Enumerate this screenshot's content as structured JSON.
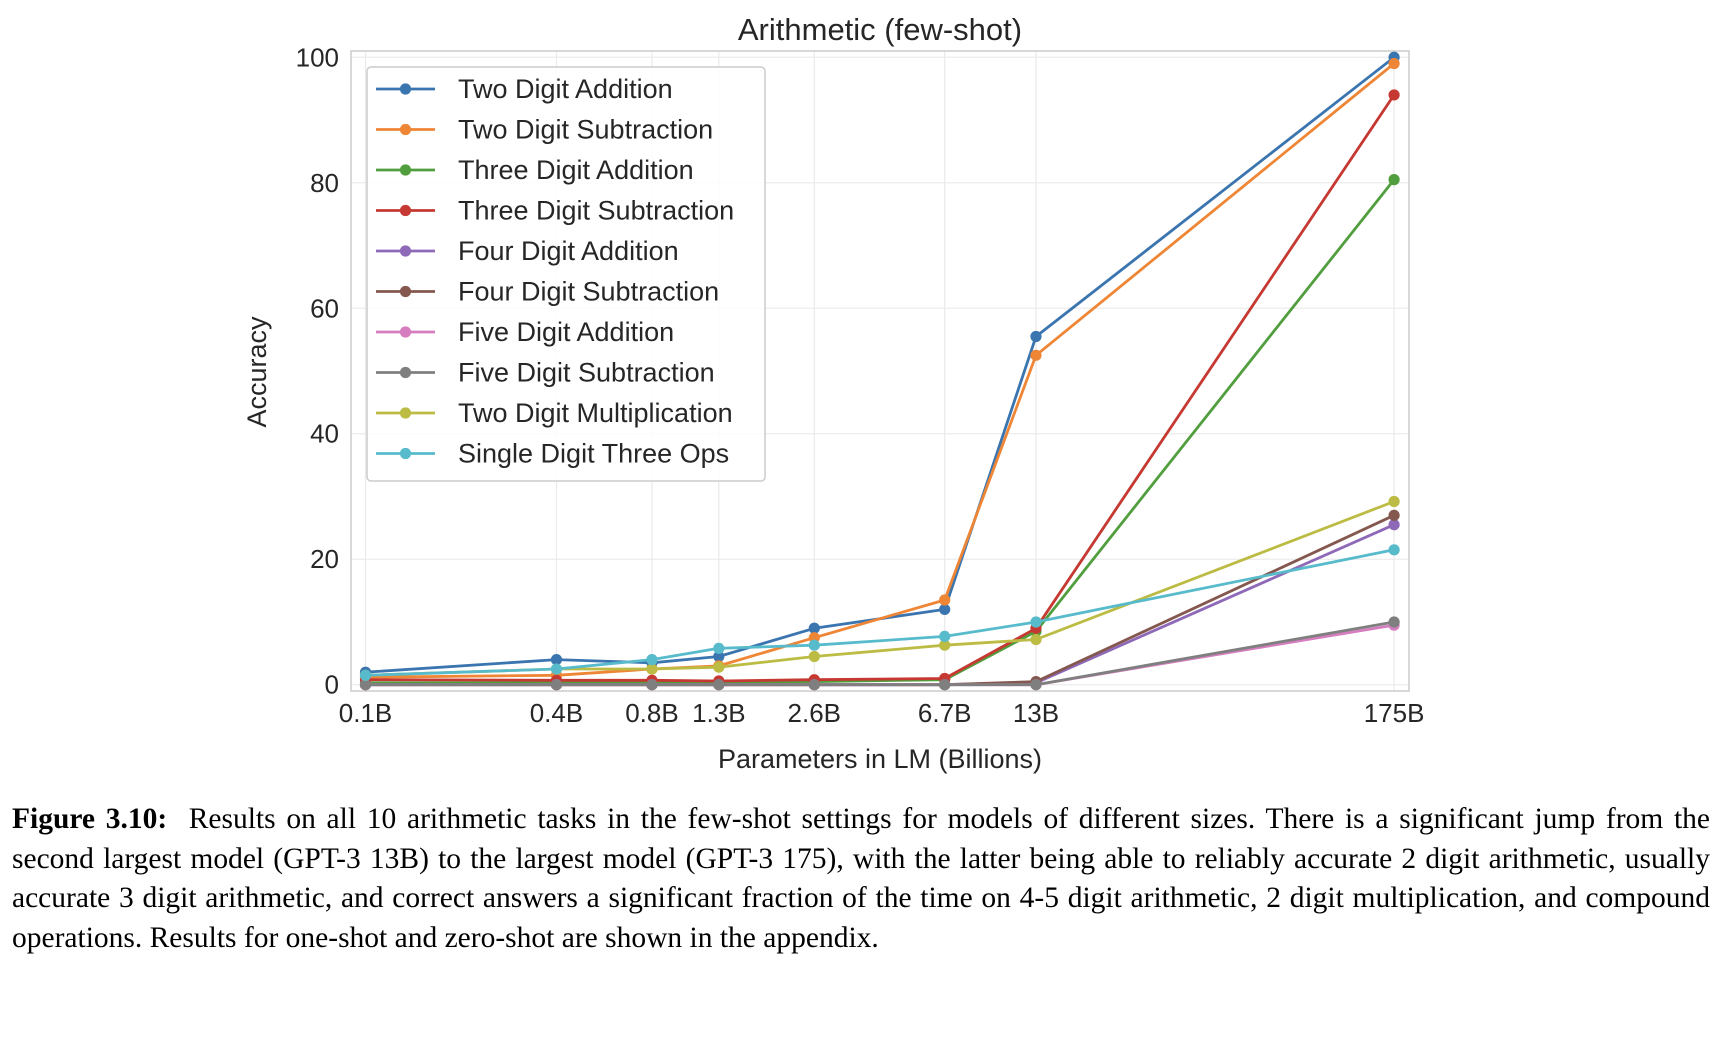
{
  "chart_data": {
    "type": "line",
    "title": "Arithmetic (few-shot)",
    "xlabel": "Parameters in LM (Billions)",
    "ylabel": "Accuracy",
    "x_scale": "log",
    "x": [
      0.1,
      0.4,
      0.8,
      1.3,
      2.6,
      6.7,
      13,
      175
    ],
    "x_tick_labels": [
      "0.1B",
      "0.4B",
      "0.8B",
      "1.3B",
      "2.6B",
      "6.7B",
      "13B",
      "175B"
    ],
    "ylim": [
      -1,
      101
    ],
    "y_ticks": [
      0,
      20,
      40,
      60,
      80,
      100
    ],
    "grid": true,
    "legend_position": "upper-left",
    "series": [
      {
        "name": "Two Digit Addition",
        "color": "#3b75af",
        "values": [
          2.0,
          4.0,
          3.5,
          4.5,
          9.0,
          12.0,
          55.5,
          100.0
        ]
      },
      {
        "name": "Two Digit Subtraction",
        "color": "#ef8636",
        "values": [
          1.2,
          1.5,
          2.5,
          3.0,
          7.5,
          13.5,
          52.5,
          99.0
        ]
      },
      {
        "name": "Three Digit Addition",
        "color": "#519e3e",
        "values": [
          0.3,
          0.3,
          0.3,
          0.3,
          0.5,
          0.8,
          8.5,
          80.5
        ]
      },
      {
        "name": "Three Digit Subtraction",
        "color": "#c53932",
        "values": [
          0.8,
          0.7,
          0.7,
          0.6,
          0.8,
          1.0,
          9.0,
          94.0
        ]
      },
      {
        "name": "Four Digit Addition",
        "color": "#8d69b8",
        "values": [
          0.0,
          0.0,
          0.0,
          0.0,
          0.0,
          0.0,
          0.3,
          25.5
        ]
      },
      {
        "name": "Four Digit Subtraction",
        "color": "#84584e",
        "values": [
          0.0,
          0.0,
          0.0,
          0.0,
          0.0,
          0.0,
          0.5,
          27.0
        ]
      },
      {
        "name": "Five Digit Addition",
        "color": "#d57dbf",
        "values": [
          0.0,
          0.0,
          0.0,
          0.0,
          0.0,
          0.0,
          0.0,
          9.5
        ]
      },
      {
        "name": "Five Digit Subtraction",
        "color": "#7f7f7f",
        "values": [
          0.0,
          0.0,
          0.0,
          0.0,
          0.0,
          0.0,
          0.0,
          10.0
        ]
      },
      {
        "name": "Two Digit Multiplication",
        "color": "#bcbc45",
        "values": [
          1.5,
          2.5,
          2.5,
          2.8,
          4.5,
          6.3,
          7.2,
          29.2
        ]
      },
      {
        "name": "Single Digit Three Ops",
        "color": "#58bbcc",
        "values": [
          1.5,
          2.5,
          4.0,
          5.8,
          6.3,
          7.7,
          10.0,
          21.5
        ]
      }
    ]
  },
  "caption": {
    "label": "Figure 3.10:",
    "text": "Results on all 10 arithmetic tasks in the few-shot settings for models of different sizes. There is a significant jump from the second largest model (GPT-3 13B) to the largest model (GPT-3 175), with the latter being able to reliably accurate 2 digit arithmetic, usually accurate 3 digit arithmetic, and correct answers a significant fraction of the time on 4-5 digit arithmetic, 2 digit multiplication, and compound operations. Results for one-shot and zero-shot are shown in the appendix."
  }
}
